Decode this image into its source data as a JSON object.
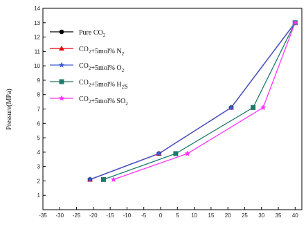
{
  "chart_data": {
    "type": "line",
    "xlabel": "",
    "ylabel": "Pressure(MPa)",
    "xlim": [
      -35,
      42
    ],
    "ylim": [
      0,
      14
    ],
    "xticks": [
      -35,
      -30,
      -25,
      -20,
      -15,
      -10,
      -5,
      0,
      5,
      10,
      15,
      20,
      25,
      30,
      35,
      40
    ],
    "yticks": [
      1,
      2,
      3,
      4,
      5,
      6,
      7,
      8,
      9,
      10,
      11,
      12,
      13,
      14
    ],
    "legend_position": "top-left",
    "series": [
      {
        "name": "Pure CO2",
        "label_main": "Pure CO",
        "label_sub": "2",
        "label_tail": "",
        "color": "#000000",
        "marker": "circle",
        "x": [
          -21,
          -0.5,
          21,
          40
        ],
        "y": [
          2.1,
          3.9,
          7.1,
          13.0
        ]
      },
      {
        "name": "CO2+5mol% N2",
        "label_main": "CO",
        "label_sub": "2",
        "label_tail": "+5mol% N",
        "label_sub2": "2",
        "color": "#e8000b",
        "marker": "triangle",
        "x": [
          -21,
          -0.5,
          21,
          40
        ],
        "y": [
          2.1,
          3.9,
          7.1,
          13.0
        ]
      },
      {
        "name": "CO2+5mol% O2",
        "label_main": "CO",
        "label_sub": "2",
        "label_tail": "+5mol% O",
        "label_sub2": "2",
        "color": "#3b5bdb",
        "marker": "star",
        "x": [
          -21,
          -0.5,
          21,
          40
        ],
        "y": [
          2.1,
          3.9,
          7.1,
          13.0
        ]
      },
      {
        "name": "CO2+5mol% H2S",
        "label_main": "CO",
        "label_sub": "2",
        "label_tail": "+5mol% H",
        "label_sub2": "2",
        "label_tail2": "S",
        "color": "#1f7a6b",
        "marker": "square",
        "x": [
          -17,
          4.5,
          27.5,
          40
        ],
        "y": [
          2.1,
          3.9,
          7.1,
          13.0
        ]
      },
      {
        "name": "CO2+5mol% SO2",
        "label_main": "CO",
        "label_sub": "2",
        "label_tail": "+5mol% SO",
        "label_sub2": "2",
        "color": "#ff33ff",
        "marker": "star",
        "x": [
          -14,
          8,
          30.5,
          40
        ],
        "y": [
          2.1,
          3.9,
          7.1,
          13.0
        ]
      }
    ]
  }
}
